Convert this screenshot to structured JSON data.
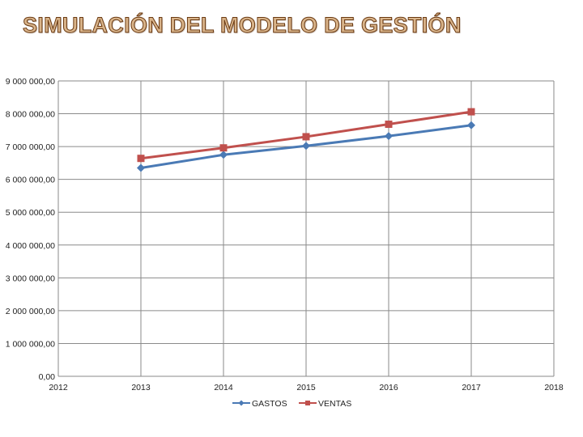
{
  "slide": {
    "title": "SIMULACIÓN DEL MODELO DE GESTIÓN"
  },
  "colors": {
    "gastos": "#4a7ab5",
    "ventas": "#c0504d",
    "grid": "#8a8a8a"
  },
  "chart_data": {
    "type": "line",
    "title": "",
    "xlabel": "",
    "ylabel": "",
    "x": [
      2013,
      2014,
      2015,
      2016,
      2017
    ],
    "xlim": [
      2012,
      2018
    ],
    "ylim": [
      0,
      9000000
    ],
    "grid": true,
    "x_ticks": [
      "2012",
      "2013",
      "2014",
      "2015",
      "2016",
      "2017",
      "2018"
    ],
    "y_ticks": [
      {
        "value": 0,
        "label": "0,00"
      },
      {
        "value": 1000000,
        "label": "1 000 000,00"
      },
      {
        "value": 2000000,
        "label": "2 000 000,00"
      },
      {
        "value": 3000000,
        "label": "3 000 000,00"
      },
      {
        "value": 4000000,
        "label": "4 000 000,00"
      },
      {
        "value": 5000000,
        "label": "5 000 000,00"
      },
      {
        "value": 6000000,
        "label": "6 000 000,00"
      },
      {
        "value": 7000000,
        "label": "7 000 000,00"
      },
      {
        "value": 8000000,
        "label": "8 000 000,00"
      },
      {
        "value": 9000000,
        "label": "9 000 000,00"
      }
    ],
    "legend_position": "bottom",
    "series": [
      {
        "name": "GASTOS",
        "marker": "diamond",
        "color": "#4a7ab5",
        "values": [
          6350000,
          6750000,
          7020000,
          7320000,
          7650000
        ]
      },
      {
        "name": "VENTAS",
        "marker": "square",
        "color": "#c0504d",
        "values": [
          6640000,
          6960000,
          7300000,
          7680000,
          8060000
        ]
      }
    ]
  }
}
